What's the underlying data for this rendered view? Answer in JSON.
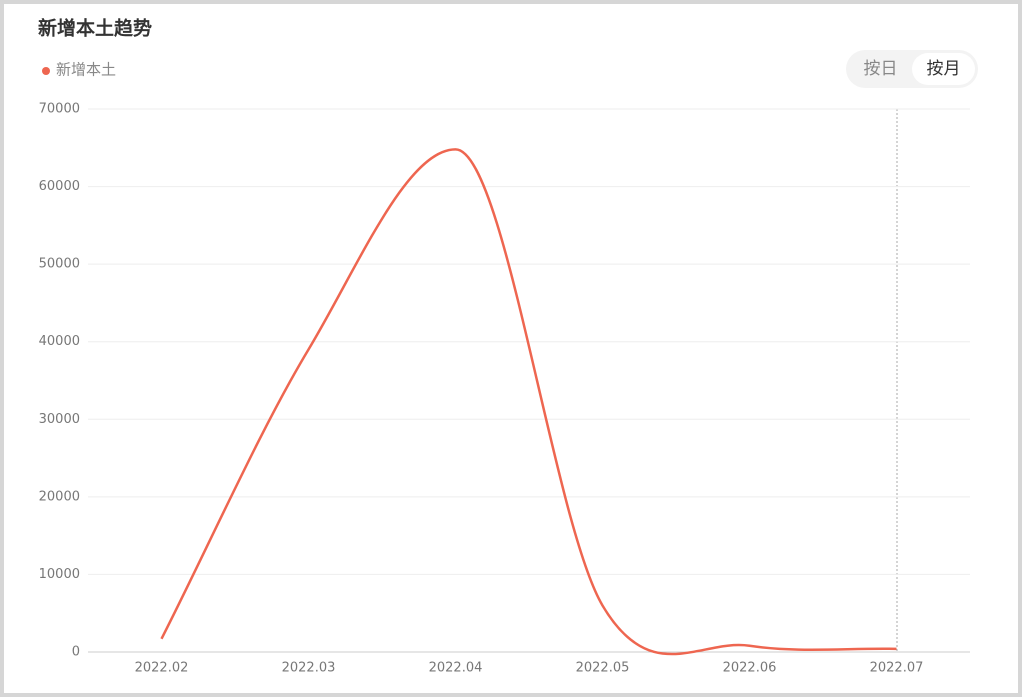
{
  "chart_data": {
    "type": "line",
    "title": "新增本土趋势",
    "categories": [
      "2022.02",
      "2022.03",
      "2022.04",
      "2022.05",
      "2022.06",
      "2022.07"
    ],
    "series": [
      {
        "name": "新增本土",
        "color": "#ee6650",
        "values": [
          1700,
          39000,
          64800,
          6000,
          800,
          400
        ]
      }
    ],
    "ylim": [
      0,
      70000
    ],
    "yticks": [
      0,
      10000,
      20000,
      30000,
      40000,
      50000,
      60000,
      70000
    ],
    "grid": true,
    "smooth": true
  },
  "toggle": {
    "options": [
      "按日",
      "按月"
    ],
    "active": 1
  }
}
